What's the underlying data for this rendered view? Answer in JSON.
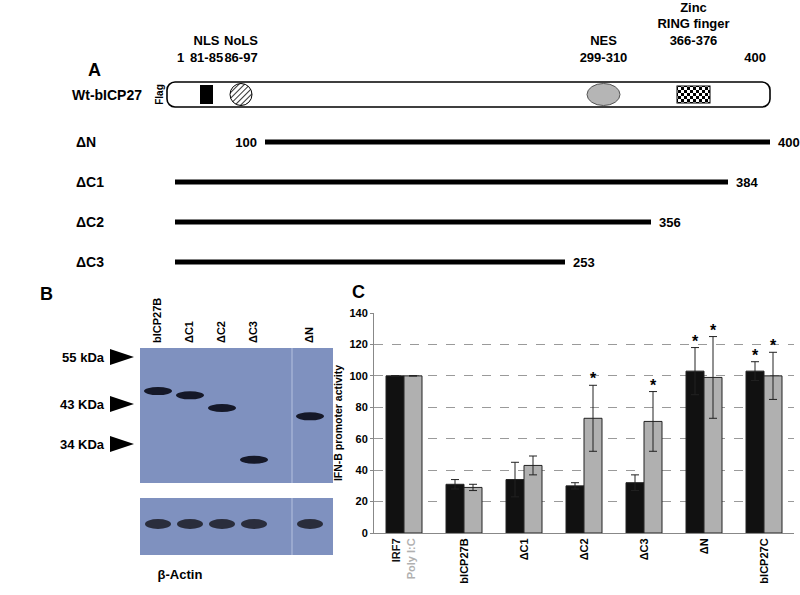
{
  "panel_labels": [
    "A",
    "B",
    "C"
  ],
  "diagram": {
    "protein": {
      "name": "Wt-bICP27",
      "tag": "Flag",
      "start": 1,
      "end": 400,
      "domains": [
        {
          "name": [
            "NLS"
          ],
          "start": 81,
          "end": 85,
          "label": "81-85",
          "shape": "box"
        },
        {
          "name": [
            "NoLS"
          ],
          "start": 86,
          "end": 97,
          "label": "86-97",
          "shape": "hatched_circle"
        },
        {
          "name": [
            "NES"
          ],
          "start": 299,
          "end": 310,
          "label": "299-310",
          "shape": "oval"
        },
        {
          "name": [
            "Zinc",
            "RING finger"
          ],
          "start": 366,
          "end": 376,
          "label": "366-376",
          "shape": "checkered"
        }
      ]
    },
    "constructs": [
      {
        "name": "ΔN",
        "start": 100,
        "end": 400
      },
      {
        "name": "ΔC1",
        "end": 384
      },
      {
        "name": "ΔC2",
        "end": 356
      },
      {
        "name": "ΔC3",
        "end": 253
      }
    ]
  },
  "blot": {
    "lanes": [
      {
        "label": "bICP27B",
        "band_kDa": 46
      },
      {
        "label": "ΔC1",
        "band_kDa": 45
      },
      {
        "label": "ΔC2",
        "band_kDa": 42
      },
      {
        "label": "ΔC3",
        "band_kDa": 31
      },
      {
        "label": "ΔN",
        "band_kDa": 40
      }
    ],
    "markers": [
      {
        "value": 55,
        "label": "55 kDa"
      },
      {
        "value": 43,
        "label": "43 KDa"
      },
      {
        "value": 34,
        "label": "34 KDa"
      }
    ],
    "loading_control": "β-Actin"
  },
  "chart_data": {
    "type": "bar",
    "categories": [
      null,
      "bICP27B",
      "ΔC1",
      "ΔC2",
      "ΔC3",
      "ΔN",
      "bICP27C"
    ],
    "series": [
      {
        "name": "IRF7",
        "color": "#111111",
        "values": [
          100,
          31,
          34,
          30,
          32,
          103,
          103
        ],
        "errors": [
          null,
          3,
          11,
          2,
          5,
          15,
          6
        ]
      },
      {
        "name": "Poly I:C",
        "color": "#b0b0b0",
        "values": [
          100,
          29,
          43,
          73,
          71,
          99,
          100
        ],
        "errors": [
          null,
          2,
          6,
          21,
          19,
          26,
          15
        ]
      }
    ],
    "ylabel": "IFN-B promoter activity",
    "ylim": [
      0,
      140
    ],
    "yticks": [
      0,
      20,
      40,
      60,
      80,
      100,
      120,
      140
    ],
    "grid": true,
    "annotations": [
      {
        "text": "*",
        "category": "ΔC2",
        "series": "Poly I:C"
      },
      {
        "text": "*",
        "category": "ΔC3",
        "series": "Poly I:C"
      },
      {
        "text": "*",
        "category": "ΔN",
        "series": "IRF7"
      },
      {
        "text": "*",
        "category": "ΔN",
        "series": "Poly I:C"
      },
      {
        "text": "*",
        "category": "bICP27C",
        "series": "IRF7"
      },
      {
        "text": "*",
        "category": "bICP27C",
        "series": "Poly I:C"
      }
    ]
  }
}
